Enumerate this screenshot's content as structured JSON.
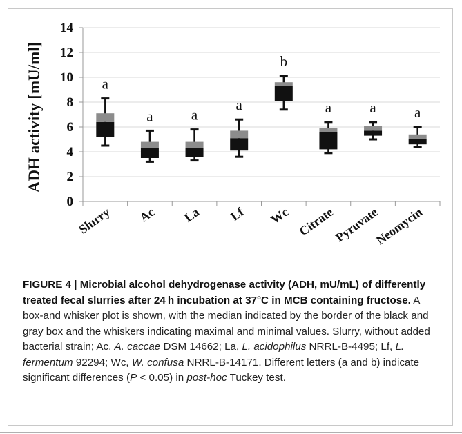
{
  "chart_data": {
    "type": "box",
    "ylabel": "ADH activity [mU/ml]",
    "xlabel": "",
    "ylim": [
      0,
      14
    ],
    "yticks": [
      0,
      2,
      4,
      6,
      8,
      10,
      12,
      14
    ],
    "grid": "horizontal",
    "categories": [
      "Slurry",
      "Ac",
      "La",
      "Lf",
      "Wc",
      "Citrate",
      "Pyruvate",
      "Neomycin"
    ],
    "boxes": [
      {
        "category": "Slurry",
        "min": 4.5,
        "q1": 5.2,
        "median": 6.4,
        "q3": 7.1,
        "max": 8.3,
        "letter": "a"
      },
      {
        "category": "Ac",
        "min": 3.2,
        "q1": 3.5,
        "median": 4.3,
        "q3": 4.8,
        "max": 5.7,
        "letter": "a"
      },
      {
        "category": "La",
        "min": 3.3,
        "q1": 3.6,
        "median": 4.3,
        "q3": 4.8,
        "max": 5.8,
        "letter": "a"
      },
      {
        "category": "Lf",
        "min": 3.6,
        "q1": 4.1,
        "median": 5.1,
        "q3": 5.7,
        "max": 6.6,
        "letter": "a"
      },
      {
        "category": "Wc",
        "min": 7.4,
        "q1": 8.1,
        "median": 9.3,
        "q3": 9.6,
        "max": 10.1,
        "letter": "b"
      },
      {
        "category": "Citrate",
        "min": 3.9,
        "q1": 4.2,
        "median": 5.6,
        "q3": 5.9,
        "max": 6.4,
        "letter": "a"
      },
      {
        "category": "Pyruvate",
        "min": 5.0,
        "q1": 5.3,
        "median": 5.7,
        "q3": 6.1,
        "max": 6.4,
        "letter": "a"
      },
      {
        "category": "Neomycin",
        "min": 4.4,
        "q1": 4.6,
        "median": 5.0,
        "q3": 5.4,
        "max": 6.0,
        "letter": "a"
      }
    ],
    "colors": {
      "lower_box": "#111111",
      "upper_box": "#8c8c8c",
      "grid": "#d9d9d9",
      "axis": "#999999"
    }
  },
  "caption": {
    "bold": "FIGURE 4 | Microbial alcohol dehydrogenase activity (ADH, mU/mL) of differently treated fecal slurries after 24 h incubation at 37°C in MCB containing fructose.",
    "t1": " A box-and whisker plot is shown, with the median indicated by the border of the black and gray box and the whiskers indicating maximal and minimal values. Slurry, without added bacterial strain; Ac, ",
    "i1": "A. caccae",
    "t2": " DSM 14662; La, ",
    "i2": "L. acidophilus",
    "t3": " NRRL-B-4495; Lf, ",
    "i3": "L. fermentum",
    "t4": " 92294; Wc, ",
    "i4": "W. confusa",
    "t5": " NRRL-B-14171. Different letters (a and b) indicate significant differences (",
    "i5": "P",
    "t6": " < 0.05) in ",
    "i6": "post-hoc",
    "t7": " Tuckey test."
  }
}
